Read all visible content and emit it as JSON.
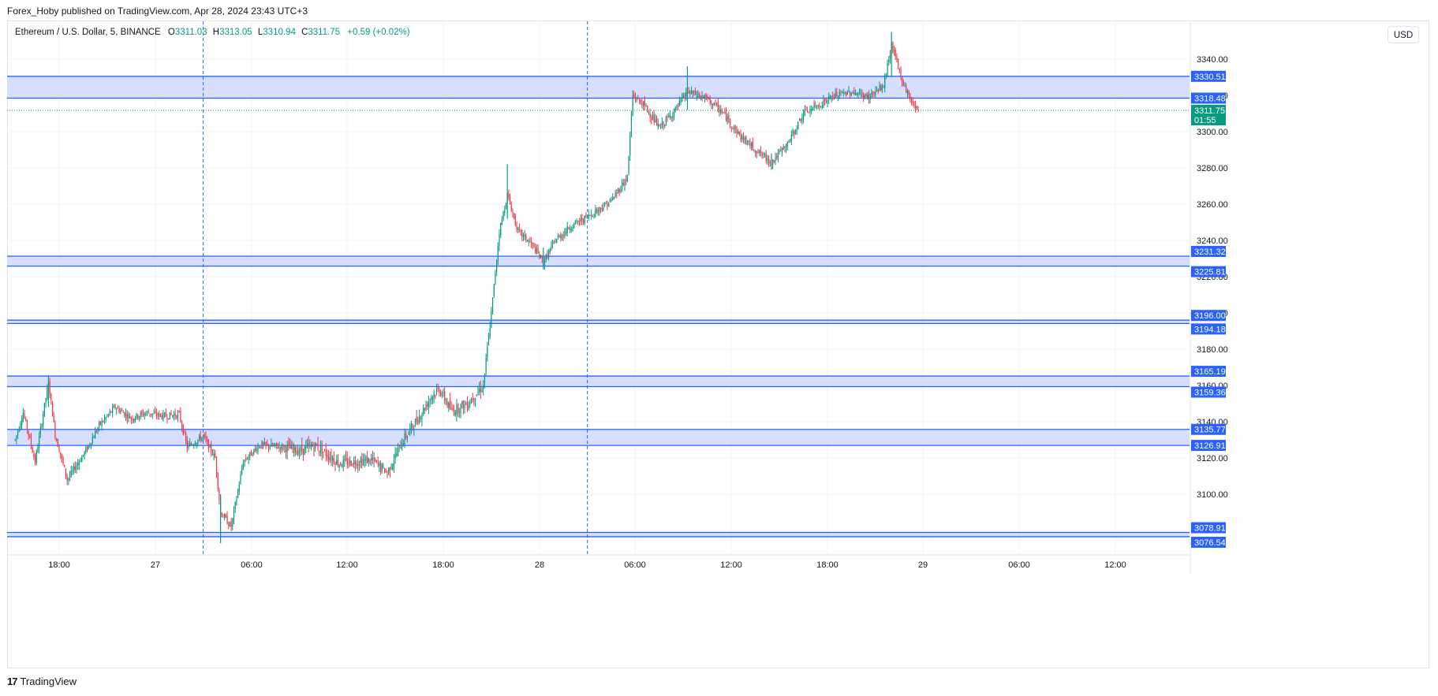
{
  "publisher": "Forex_Hoby published on TradingView.com, Apr 28, 2024 23:43 UTC+3",
  "legend": {
    "symbol": "Ethereum / U.S. Dollar, 5, BINANCE",
    "o_label": "O",
    "o_value": "3311.03",
    "h_label": "H",
    "h_value": "3313.05",
    "l_label": "L",
    "l_value": "3310.94",
    "c_label": "C",
    "c_value": "3311.75",
    "change": "+0.59 (+0.02%)"
  },
  "currency_button": "USD",
  "brand": {
    "logo": "17",
    "name": "TradingView"
  },
  "colors": {
    "up": "#089981",
    "down": "#f23645",
    "zone_fill": "#d1dcff",
    "zone_line": "#2962ff",
    "label_bg": "#2962ff",
    "price_bg": "#089981",
    "grid": "#f0f3fa",
    "session_line": "#2962ff"
  },
  "chart_data": {
    "type": "candlestick",
    "timeframe": "5",
    "x_ticks": [
      "18:00",
      "27",
      "06:00",
      "12:00",
      "18:00",
      "28",
      "06:00",
      "12:00",
      "18:00",
      "29",
      "06:00",
      "12:00"
    ],
    "y_ticks": [
      3100.0,
      3120.0,
      3140.0,
      3160.0,
      3180.0,
      3200.0,
      3220.0,
      3240.0,
      3260.0,
      3280.0,
      3300.0,
      3320.0,
      3340.0
    ],
    "y_range": [
      3072,
      3358
    ],
    "grid": true,
    "zones": [
      {
        "top": 3330.51,
        "bottom": 3318.48,
        "top_label": "3330.51",
        "bottom_label": "3318.48"
      },
      {
        "top": 3231.32,
        "bottom": 3225.81,
        "top_label": "3231.32",
        "bottom_label": "3225.81"
      },
      {
        "top": 3196.0,
        "bottom": 3194.18,
        "top_label": "3196.00",
        "bottom_label": "3194.18"
      },
      {
        "top": 3165.19,
        "bottom": 3159.36,
        "top_label": "3165.19",
        "bottom_label": "3159.36"
      },
      {
        "top": 3135.77,
        "bottom": 3126.91,
        "top_label": "3135.77",
        "bottom_label": "3126.91"
      },
      {
        "top": 3078.91,
        "bottom": 3076.54,
        "top_label": "3078.91",
        "bottom_label": "3076.54"
      }
    ],
    "last_price": {
      "value": 3311.75,
      "label": "3311.75",
      "countdown": "01:55"
    },
    "session_breaks": [
      "27 03:00",
      "28 03:00"
    ],
    "price_path": [
      [
        "26 15:15",
        3130
      ],
      [
        "26 15:45",
        3145
      ],
      [
        "26 16:30",
        3118
      ],
      [
        "26 17:20",
        3162
      ],
      [
        "26 17:45",
        3133
      ],
      [
        "26 18:30",
        3108
      ],
      [
        "26 19:40",
        3124
      ],
      [
        "26 20:30",
        3138
      ],
      [
        "26 21:30",
        3148
      ],
      [
        "26 22:30",
        3142
      ],
      [
        "26 23:30",
        3145
      ],
      [
        "27 00:30",
        3143
      ],
      [
        "27 01:30",
        3144
      ],
      [
        "27 02:00",
        3126
      ],
      [
        "27 03:00",
        3132
      ],
      [
        "27 03:45",
        3120
      ],
      [
        "27 04:05",
        3090
      ],
      [
        "27 04:45",
        3082
      ],
      [
        "27 05:30",
        3118
      ],
      [
        "27 06:30",
        3127
      ],
      [
        "27 08:00",
        3126
      ],
      [
        "27 09:00",
        3124
      ],
      [
        "27 10:00",
        3127
      ],
      [
        "27 11:30",
        3117
      ],
      [
        "27 12:30",
        3118
      ],
      [
        "27 13:30",
        3119
      ],
      [
        "27 14:30",
        3112
      ],
      [
        "27 15:30",
        3130
      ],
      [
        "27 16:30",
        3143
      ],
      [
        "27 17:15",
        3154
      ],
      [
        "27 17:45",
        3158
      ],
      [
        "27 18:30",
        3146
      ],
      [
        "27 19:30",
        3150
      ],
      [
        "27 20:30",
        3160
      ],
      [
        "27 21:00",
        3200
      ],
      [
        "27 21:30",
        3245
      ],
      [
        "27 22:00",
        3265
      ],
      [
        "27 22:40",
        3245
      ],
      [
        "27 23:30",
        3238
      ],
      [
        "28 00:15",
        3228
      ],
      [
        "28 01:00",
        3240
      ],
      [
        "28 02:00",
        3248
      ],
      [
        "28 03:00",
        3253
      ],
      [
        "28 04:30",
        3262
      ],
      [
        "28 05:30",
        3275
      ],
      [
        "28 05:50",
        3320
      ],
      [
        "28 06:30",
        3315
      ],
      [
        "28 07:30",
        3302
      ],
      [
        "28 08:30",
        3312
      ],
      [
        "28 09:15",
        3322
      ],
      [
        "28 10:30",
        3318
      ],
      [
        "28 11:30",
        3310
      ],
      [
        "28 12:30",
        3298
      ],
      [
        "28 13:30",
        3290
      ],
      [
        "28 14:30",
        3283
      ],
      [
        "28 15:30",
        3293
      ],
      [
        "28 16:30",
        3310
      ],
      [
        "28 17:30",
        3315
      ],
      [
        "28 18:30",
        3320
      ],
      [
        "28 19:30",
        3322
      ],
      [
        "28 20:30",
        3319
      ],
      [
        "28 21:30",
        3325
      ],
      [
        "28 22:00",
        3348
      ],
      [
        "28 22:40",
        3328
      ],
      [
        "28 23:10",
        3318
      ],
      [
        "28 23:40",
        3311.75
      ]
    ],
    "spikes": [
      {
        "time": "26 17:20",
        "high": 3165,
        "low": 3148
      },
      {
        "time": "27 04:05",
        "high": 3100,
        "low": 3073
      },
      {
        "time": "27 22:00",
        "high": 3282,
        "low": 3252
      },
      {
        "time": "28 00:15",
        "high": 3236,
        "low": 3224
      },
      {
        "time": "28 09:15",
        "high": 3336,
        "low": 3312
      },
      {
        "time": "28 14:30",
        "high": 3288,
        "low": 3279
      },
      {
        "time": "28 22:00",
        "high": 3355,
        "low": 3330
      }
    ]
  }
}
